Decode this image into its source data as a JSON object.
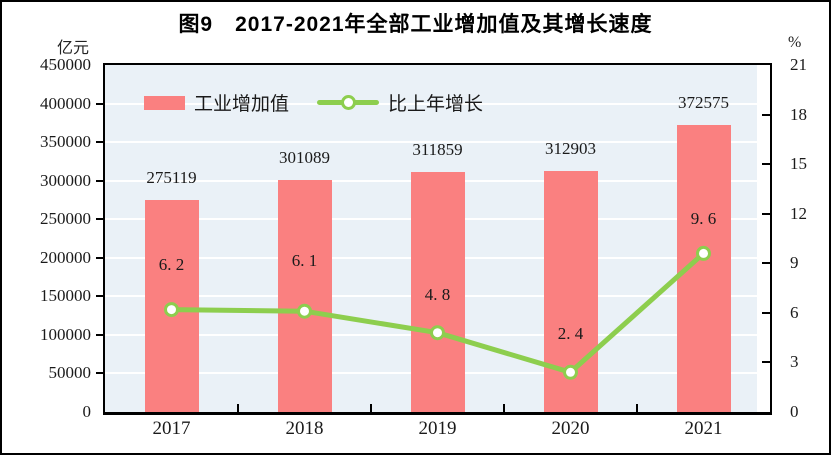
{
  "chart_data": {
    "type": "combo-bar-line",
    "title": "图9　2017-2021年全部工业增加值及其增长速度",
    "categories": [
      "2017",
      "2018",
      "2019",
      "2020",
      "2021"
    ],
    "series": [
      {
        "name": "工业增加值",
        "type": "bar",
        "axis": "left",
        "color": "#FA8080",
        "values": [
          275119,
          301089,
          311859,
          312903,
          372575
        ],
        "labels": [
          "275119",
          "301089",
          "311859",
          "312903",
          "372575"
        ]
      },
      {
        "name": "比上年增长",
        "type": "line",
        "axis": "right",
        "color": "#8DCE4E",
        "marker": "white-circle-green-ring",
        "values": [
          6.2,
          6.1,
          4.8,
          2.4,
          9.6
        ],
        "labels": [
          "6. 2",
          "6. 1",
          "4. 8",
          "2. 4",
          "9. 6"
        ]
      }
    ],
    "left_axis": {
      "label": "亿元",
      "min": 0,
      "max": 450000,
      "step": 50000,
      "tick_labels": [
        "450000",
        "400000",
        "350000",
        "300000",
        "250000",
        "200000",
        "150000",
        "100000",
        "50000",
        "0"
      ]
    },
    "right_axis": {
      "label": "%",
      "min": 0,
      "max": 21,
      "step": 3,
      "tick_labels": [
        "21",
        "18",
        "15",
        "12",
        "9",
        "6",
        "3",
        "0"
      ]
    },
    "grid": "horizontal white lines on light-blue plot background",
    "legend_position": "top-left inside plot",
    "colors": {
      "bar": "#FA8080",
      "line": "#8DCE4E",
      "plot_background": "#EAF1F7",
      "gridline": "#FFFFFF",
      "axis": "#000000",
      "text": "#1A1A1A"
    }
  }
}
